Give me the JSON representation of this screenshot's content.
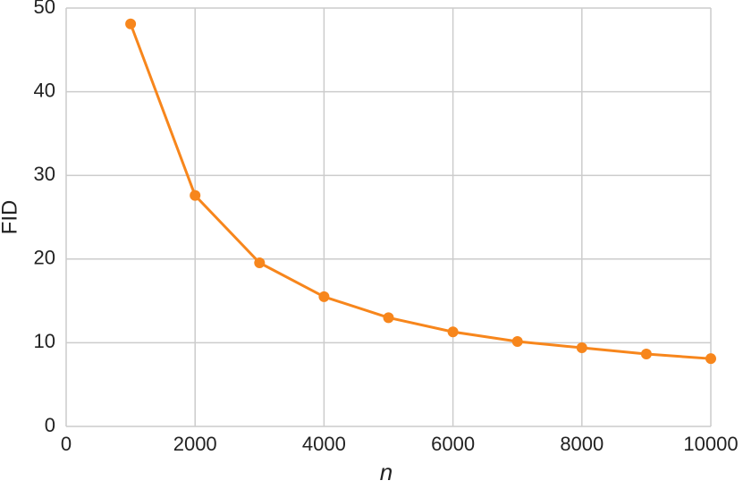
{
  "chart_data": {
    "type": "line",
    "x_label": "n",
    "y_label": "FID",
    "x": [
      1000,
      2000,
      3000,
      4000,
      5000,
      6000,
      7000,
      8000,
      9000,
      10000
    ],
    "series": [
      {
        "color": "#f7861c",
        "values": [
          48.1,
          27.6,
          19.55,
          15.5,
          13.0,
          11.3,
          10.15,
          9.4,
          8.65,
          8.1
        ]
      }
    ],
    "xlim": [
      0,
      10000
    ],
    "xticks": [
      0,
      2000,
      4000,
      6000,
      8000,
      10000
    ],
    "ylim": [
      0,
      50
    ],
    "yticks": [
      0,
      10,
      20,
      30,
      40,
      50
    ],
    "grid": true
  }
}
